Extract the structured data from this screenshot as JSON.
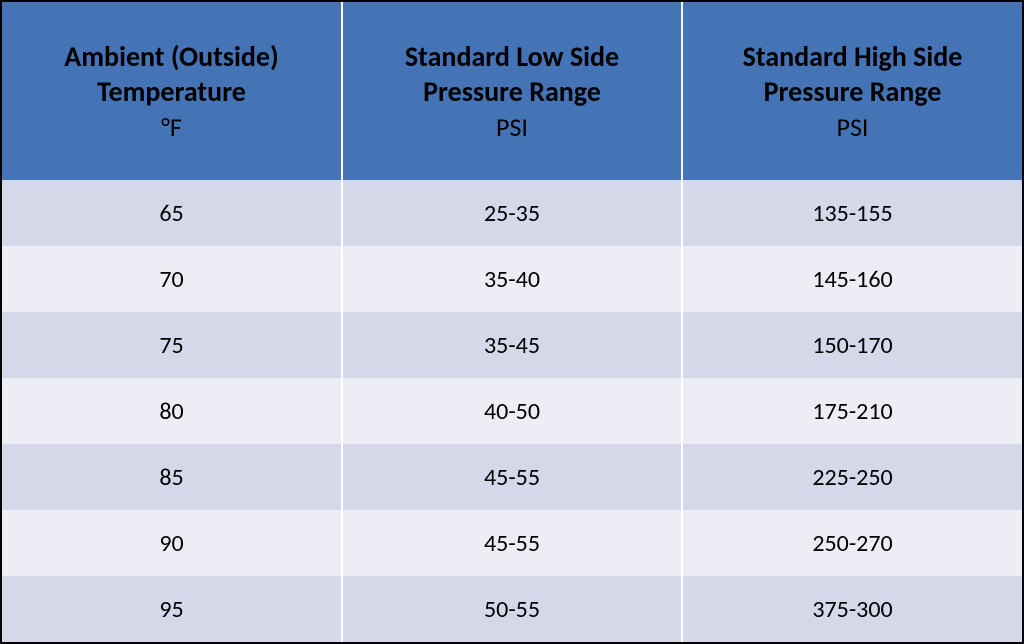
{
  "table": {
    "type": "table",
    "header_bg": "#4473b6",
    "header_text_color": "#000000",
    "header_title_fontsize": 28,
    "header_unit_fontsize": 26,
    "body_fontsize": 24,
    "row_colors": [
      "#d4d8e9",
      "#ecedf5"
    ],
    "border_color": "#000000",
    "col_separator_color": "#ffffff",
    "columns": [
      {
        "title": "Ambient (Outside) Temperature",
        "unit": "°F"
      },
      {
        "title": "Standard Low Side Pressure Range",
        "unit": "PSI"
      },
      {
        "title": "Standard High Side Pressure Range",
        "unit": "PSI"
      }
    ],
    "rows": [
      [
        "65",
        "25-35",
        "135-155"
      ],
      [
        "70",
        "35-40",
        "145-160"
      ],
      [
        "75",
        "35-45",
        "150-170"
      ],
      [
        "80",
        "40-50",
        "175-210"
      ],
      [
        "85",
        "45-55",
        "225-250"
      ],
      [
        "90",
        "45-55",
        "250-270"
      ],
      [
        "95",
        "50-55",
        "375-300"
      ]
    ]
  }
}
